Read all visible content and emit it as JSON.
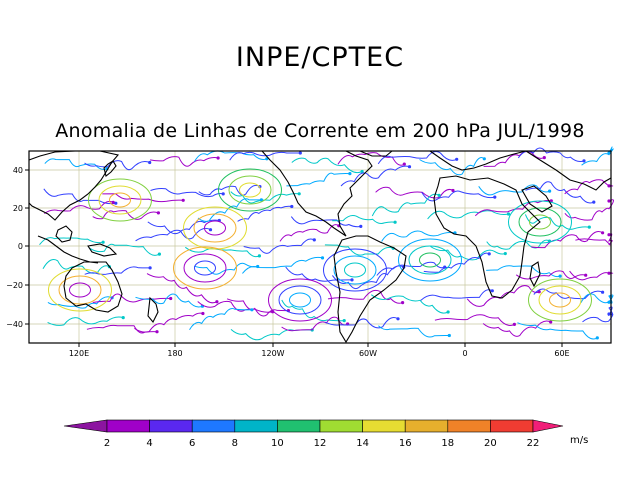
{
  "header": {
    "organization": "INPE/CPTEC",
    "subtitle": "Anomalia de Linhas de Corrente em 200 hPa JUL/1998"
  },
  "map": {
    "lat_labels": [
      "40",
      "20",
      "0",
      "−20",
      "−40"
    ],
    "lon_labels": [
      "120E",
      "180",
      "120W",
      "60W",
      "0",
      "60E"
    ],
    "lat_range": [
      -50,
      50
    ],
    "lon_range": [
      90,
      435
    ],
    "streamline_colors": [
      "#a000c8",
      "#3240ff",
      "#00aaff",
      "#00c8c8",
      "#20c060",
      "#80d040",
      "#e0dc30",
      "#f4b030"
    ],
    "land_color": "#000000",
    "grid_color": "#c8c8a0"
  },
  "colorbar": {
    "labels": [
      "2",
      "4",
      "6",
      "8",
      "10",
      "12",
      "14",
      "16",
      "18",
      "20",
      "22"
    ],
    "unit": "m/s",
    "colors": [
      "#8c14a0",
      "#a000c8",
      "#5a28f0",
      "#1e78ff",
      "#00b4c8",
      "#20c070",
      "#a0dc32",
      "#e6dc32",
      "#e6af2d",
      "#f08228",
      "#f03c32",
      "#f01e78"
    ]
  }
}
